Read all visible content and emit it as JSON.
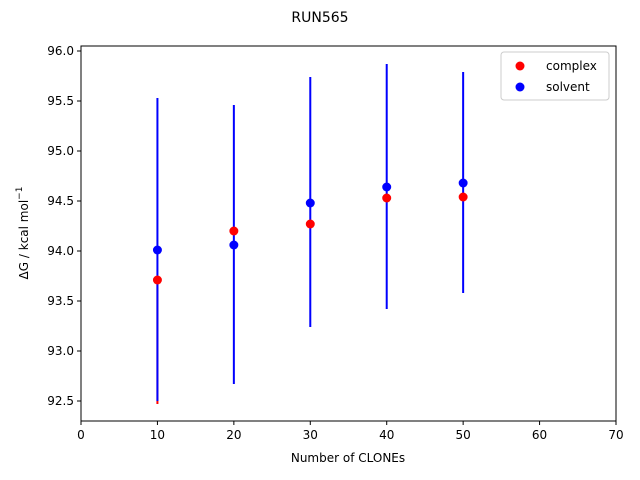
{
  "chart_data": {
    "type": "scatter",
    "title": "RUN565",
    "xlabel": "Number of CLONEs",
    "ylabel_main": "ΔG / kcal mol",
    "ylabel_sup": "−1",
    "xlim": [
      0,
      70
    ],
    "ylim": [
      92.3,
      96.05
    ],
    "xticks": [
      0,
      10,
      20,
      30,
      40,
      50,
      60,
      70
    ],
    "xtick_labels": [
      "0",
      "10",
      "20",
      "30",
      "40",
      "50",
      "60",
      "70"
    ],
    "yticks": [
      92.5,
      93.0,
      93.5,
      94.0,
      94.5,
      95.0,
      95.5,
      96.0
    ],
    "ytick_labels": [
      "92.5",
      "93.0",
      "93.5",
      "94.0",
      "94.5",
      "95.0",
      "95.5",
      "96.0"
    ],
    "grid": false,
    "legend_position": "top-right",
    "series": [
      {
        "name": "complex",
        "color": "#ff0000",
        "x": [
          10,
          20,
          30,
          40,
          50
        ],
        "y": [
          93.71,
          94.2,
          94.27,
          94.53,
          94.54
        ],
        "err_low": [
          92.47,
          null,
          null,
          null,
          null
        ],
        "err_high": [
          null,
          null,
          null,
          null,
          null
        ]
      },
      {
        "name": "solvent",
        "color": "#0000ff",
        "x": [
          10,
          20,
          30,
          40,
          50
        ],
        "y": [
          94.01,
          94.06,
          94.48,
          94.64,
          94.68
        ],
        "err_low": [
          92.5,
          92.67,
          93.24,
          93.42,
          93.58
        ],
        "err_high": [
          95.53,
          95.46,
          95.74,
          95.87,
          95.79
        ]
      }
    ]
  }
}
